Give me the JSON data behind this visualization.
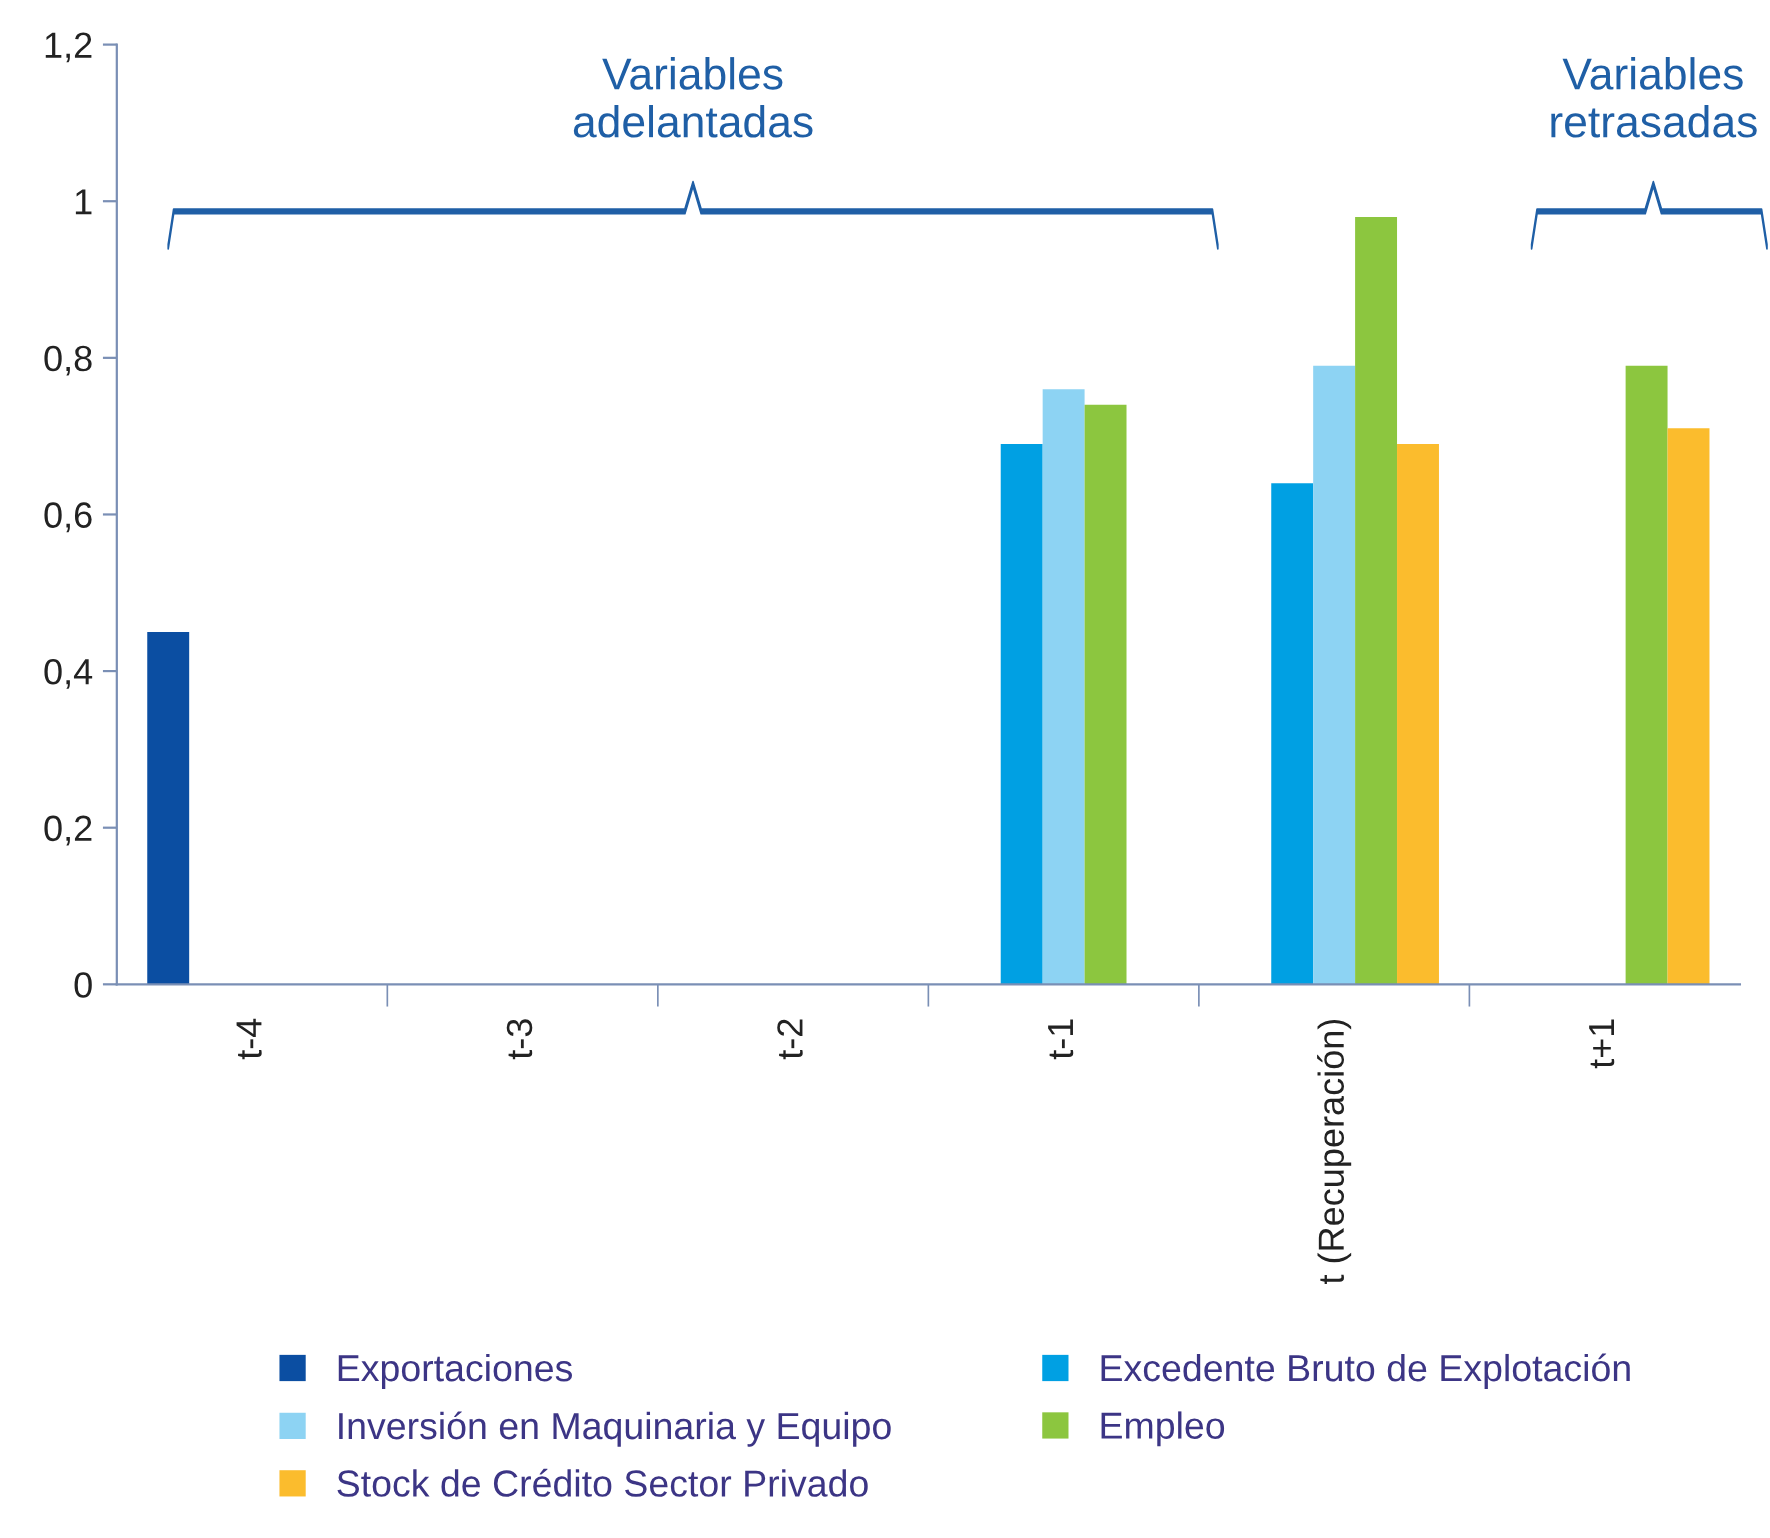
{
  "chart_data": {
    "type": "bar",
    "categories": [
      "t-4",
      "t-3",
      "t-2",
      "t-1",
      "t (Recuperación)",
      "t+1"
    ],
    "series": [
      {
        "name": "Exportaciones",
        "color": "#0b4ea2",
        "values": [
          0.45,
          null,
          null,
          null,
          null,
          null
        ]
      },
      {
        "name": "Excedente Bruto de Explotación",
        "color": "#00a0e3",
        "values": [
          null,
          null,
          null,
          0.69,
          0.64,
          null
        ]
      },
      {
        "name": "Inversión en Maquinaria y Equipo",
        "color": "#8dd3f3",
        "values": [
          null,
          null,
          null,
          0.76,
          0.79,
          null
        ]
      },
      {
        "name": "Empleo",
        "color": "#8cc63f",
        "values": [
          null,
          null,
          null,
          0.74,
          0.98,
          0.79
        ]
      },
      {
        "name": "Stock de Crédito Sector Privado",
        "color": "#fbbc2d",
        "values": [
          null,
          null,
          null,
          null,
          0.69,
          0.71
        ]
      }
    ],
    "ylim": [
      0,
      1.2
    ],
    "yticks": [
      0,
      {
        "value": 0.2,
        "label": "0,2"
      },
      {
        "value": 0.4,
        "label": "0,4"
      },
      {
        "value": 0.6,
        "label": "0,6"
      },
      {
        "value": 0.8,
        "label": "0,8"
      },
      1,
      {
        "value": 1.2,
        "label": "1,2"
      }
    ],
    "grid": false,
    "legend": "bottom",
    "annotations": [
      "Variables\nadelantadas",
      "Variables\nretrasadas"
    ]
  }
}
